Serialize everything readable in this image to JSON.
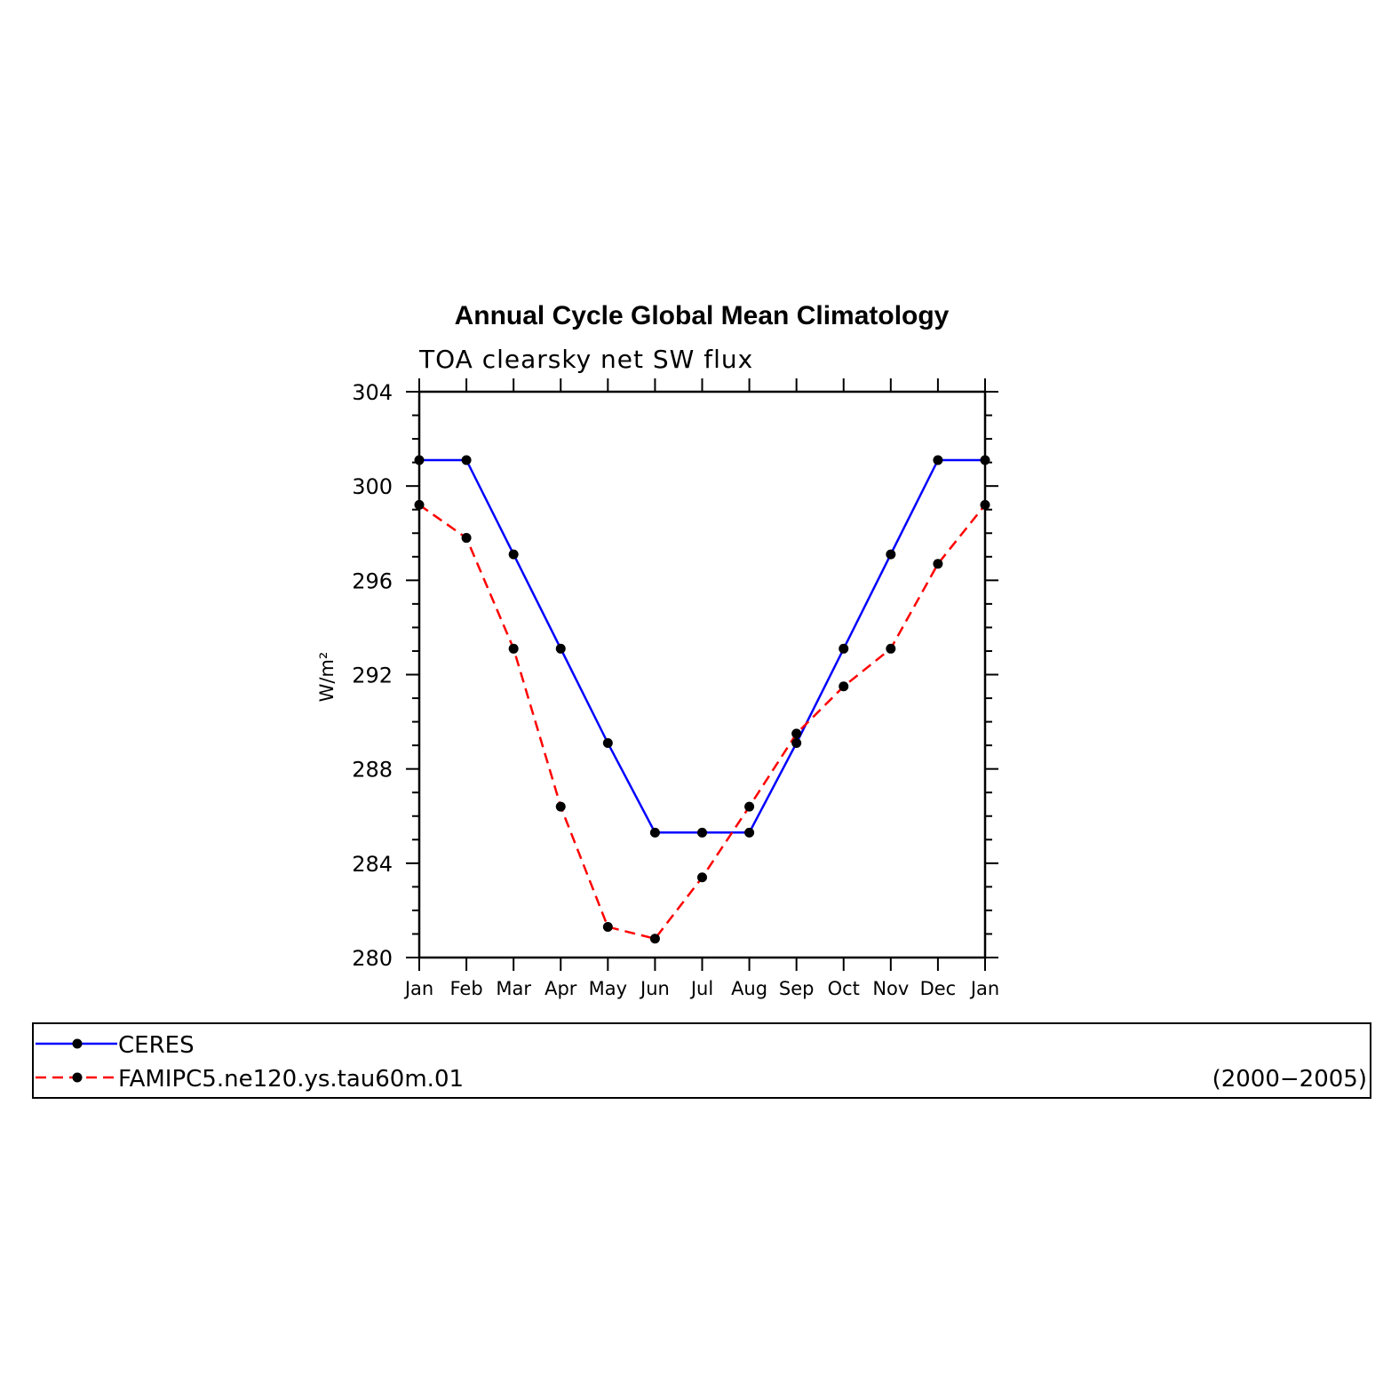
{
  "chart_data": {
    "type": "line",
    "title": "Annual Cycle Global Mean Climatology",
    "subtitle": "TOA clearsky net SW flux",
    "ylabel": "W/m²",
    "xlabel": "",
    "categories": [
      "Jan",
      "Feb",
      "Mar",
      "Apr",
      "May",
      "Jun",
      "Jul",
      "Aug",
      "Sep",
      "Oct",
      "Nov",
      "Dec",
      "Jan"
    ],
    "ylim": [
      280,
      304
    ],
    "yticks": [
      "280",
      "284",
      "288",
      "292",
      "296",
      "300",
      "304"
    ],
    "grid": false,
    "legend_position": "bottom",
    "period_label": "(2000−2005)",
    "series": [
      {
        "name": "CERES",
        "color": "#0000ff",
        "line_style": "solid",
        "marker": "dot",
        "values": [
          301.1,
          301.1,
          297.1,
          293.1,
          289.1,
          285.3,
          285.3,
          285.3,
          289.1,
          293.1,
          297.1,
          301.1,
          301.1
        ]
      },
      {
        "name": "FAMIPC5.ne120.ys.tau60m.01",
        "color": "#ff0000",
        "line_style": "dashed",
        "marker": "dot",
        "values": [
          299.2,
          297.8,
          293.1,
          286.4,
          281.3,
          280.8,
          283.4,
          286.4,
          289.5,
          291.5,
          293.1,
          296.7,
          299.2
        ]
      }
    ]
  }
}
